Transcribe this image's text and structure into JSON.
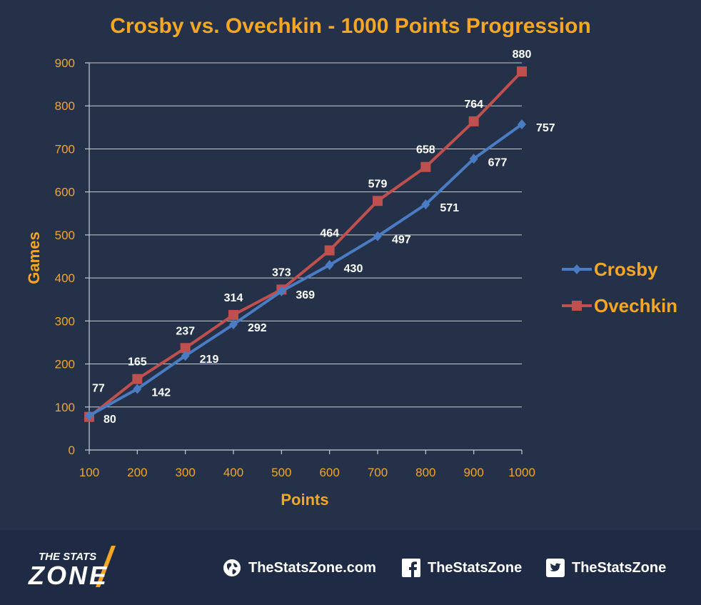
{
  "chart_data": {
    "type": "line",
    "title": "Crosby vs. Ovechkin - 1000 Points Progression",
    "xlabel": "Points",
    "ylabel": "Games",
    "x": [
      100,
      200,
      300,
      400,
      500,
      600,
      700,
      800,
      900,
      1000
    ],
    "x_tick_labels": [
      "100",
      "200",
      "300",
      "400",
      "500",
      "600",
      "700",
      "800",
      "900",
      "1000"
    ],
    "ylim": [
      0,
      900
    ],
    "y_ticks": [
      0,
      100,
      200,
      300,
      400,
      500,
      600,
      700,
      800,
      900
    ],
    "y_tick_labels": [
      "0",
      "100",
      "200",
      "300",
      "400",
      "500",
      "600",
      "700",
      "800",
      "900"
    ],
    "grid": true,
    "legend_position": "right",
    "series": [
      {
        "name": "Crosby",
        "color": "#4a7cc4",
        "marker": "diamond",
        "values": [
          80,
          142,
          219,
          292,
          369,
          430,
          497,
          571,
          677,
          757
        ],
        "value_labels": [
          "80",
          "142",
          "219",
          "292",
          "369",
          "430",
          "497",
          "571",
          "677",
          "757"
        ]
      },
      {
        "name": "Ovechkin",
        "color": "#c0504d",
        "marker": "square",
        "values": [
          77,
          165,
          237,
          314,
          373,
          464,
          579,
          658,
          764,
          880
        ],
        "value_labels": [
          "77",
          "165",
          "237",
          "314",
          "373",
          "464",
          "579",
          "658",
          "764",
          "880"
        ]
      }
    ]
  },
  "footer": {
    "logo_text_top": "THE STATS",
    "logo_text_bottom": "ZONE",
    "website": "TheStatsZone.com",
    "facebook": "TheStatsZone",
    "twitter": "TheStatsZone",
    "icons": [
      "globe-icon",
      "facebook-icon",
      "twitter-icon"
    ]
  }
}
